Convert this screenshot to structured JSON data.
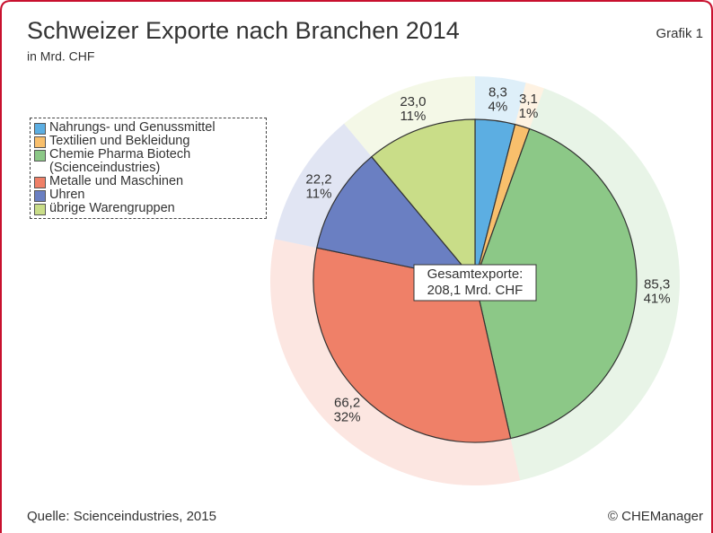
{
  "chart_data": {
    "type": "pie",
    "title": "Schweizer Exporte nach Branchen 2014",
    "subtitle": "in Mrd. CHF",
    "figure_label": "Grafik 1",
    "source": "Quelle: Scienceindustries, 2015",
    "copyright": "© CHEManager",
    "center_label": [
      "Gesamtexporte:",
      "208,1 Mrd. CHF"
    ],
    "categories": [
      "Nahrungs- und Genussmittel",
      "Textilien und Bekleidung",
      "Chemie Pharma Biotech\n(Scienceindustries)",
      "Metalle und Maschinen",
      "Uhren",
      "übrige Warengruppen"
    ],
    "values": [
      8.3,
      3.1,
      85.3,
      66.2,
      22.2,
      23.0
    ],
    "value_labels": [
      "8,3",
      "3,1",
      "85,3",
      "66,2",
      "22,2",
      "23,0"
    ],
    "percents": [
      4,
      1,
      41,
      32,
      11,
      11
    ],
    "colors": [
      "#5caee2",
      "#f8bf6c",
      "#8cc887",
      "#ef8068",
      "#6a7fc2",
      "#c9dd88"
    ],
    "legend": "upper left"
  }
}
